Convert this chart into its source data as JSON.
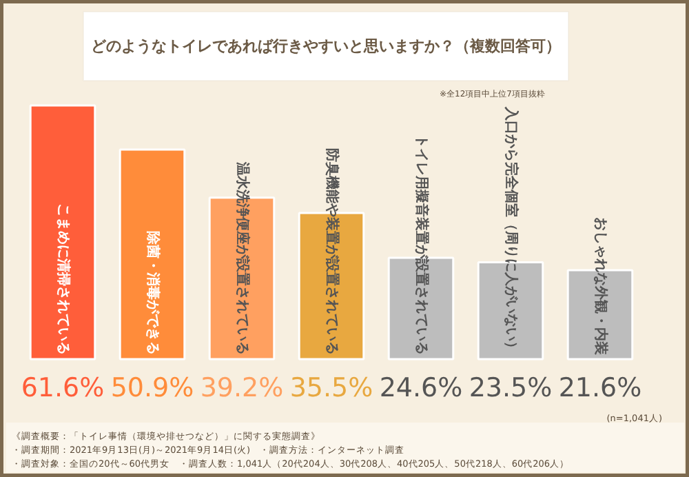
{
  "chart_data": {
    "type": "bar",
    "title": "どのようなトイレであれば行きやすいと思いますか？（複数回答可）",
    "categories": [
      "こまめに清掃されている",
      "除菌・消毒ができる",
      "温水洗浄便座が設置されている",
      "防臭機能や装置が設置されている",
      "トイレ用擬音装置が設置されている",
      "入口から完全個室（周りに人がいない）",
      "おしゃれな外観・内装"
    ],
    "values": [
      61.6,
      50.9,
      39.2,
      35.5,
      24.6,
      23.5,
      21.6
    ],
    "colors": [
      "#ff5e3a",
      "#ff8c3a",
      "#ffa060",
      "#e8a840",
      "#bdbdbd",
      "#bdbdbd",
      "#bdbdbd"
    ],
    "value_labels": [
      "61.6%",
      "50.9%",
      "39.2%",
      "35.5%",
      "24.6%",
      "23.5%",
      "21.6%"
    ],
    "annotations": [
      "※全12項目中上位7項目抜粋",
      "(n=1,041人)",
      "《調査概要：「トイレ事情（環境や排せつなど）」に関する実態調査》",
      "・調査期間：2021年9月13日(月)～2021年9月14日(火)　・調査方法：インターネット調査",
      "・調査対象：全国の20代～60代男女　・調査人数：1,041人（20代204人、30代208人、40代205人、50代218人、60代206人）"
    ],
    "grid": false
  }
}
